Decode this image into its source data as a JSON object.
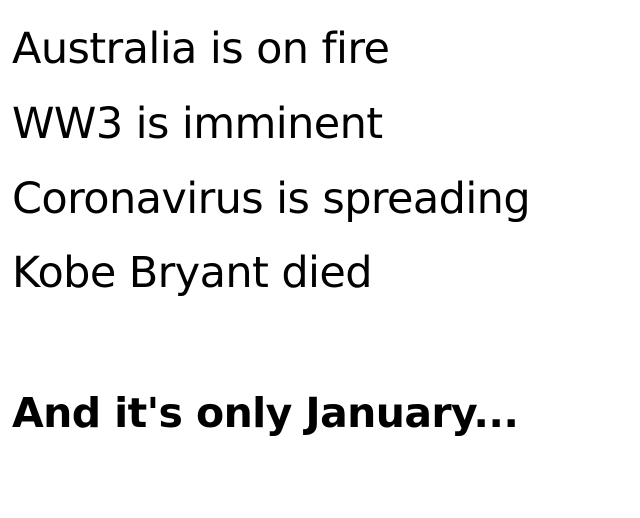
{
  "lines": [
    "Australia is on fire",
    "WW3 is imminent",
    "Coronavirus is spreading",
    "Kobe Bryant died"
  ],
  "punchline": "And it's only January...",
  "colors": {
    "background": "#ffffff",
    "text": "#000000"
  }
}
